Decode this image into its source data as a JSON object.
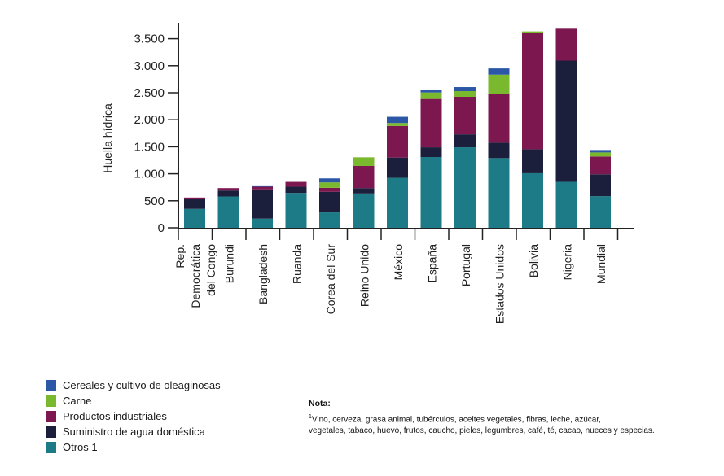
{
  "chart_data": {
    "type": "bar",
    "stacked": true,
    "title": "",
    "xlabel": "",
    "ylabel": "Huella hídrica",
    "ylim": [
      0,
      3600
    ],
    "yticks": [
      0,
      500,
      1000,
      1500,
      2000,
      2500,
      3000,
      3500
    ],
    "ytick_labels": [
      "0",
      "500",
      "1.000",
      "1.500",
      "2.000",
      "2.500",
      "3.000",
      "3.500"
    ],
    "grid": false,
    "legend_position": "bottom-left",
    "categories": [
      [
        "Rep.",
        "Democrática",
        "del Congo"
      ],
      [
        "Burundi"
      ],
      [
        "Bangladesh"
      ],
      [
        "Ruanda"
      ],
      [
        "Corea del Sur"
      ],
      [
        "Reino Unido"
      ],
      [
        "México"
      ],
      [
        "España"
      ],
      [
        "Portugal"
      ],
      [
        "Estados Unidos"
      ],
      [
        "Bolivia"
      ],
      [
        "Nigeria"
      ],
      [
        "Mundial"
      ]
    ],
    "series": [
      {
        "name": "Otros 1",
        "color": "#1c7b86",
        "values": [
          350,
          580,
          170,
          645,
          285,
          635,
          925,
          1310,
          1490,
          1290,
          1010,
          850,
          585
        ]
      },
      {
        "name": "Suministro de agua doméstica",
        "color": "#1c1f3c",
        "values": [
          180,
          110,
          540,
          115,
          380,
          100,
          375,
          180,
          240,
          285,
          445,
          2245,
          405
        ]
      },
      {
        "name": "Productos industriales",
        "color": "#7c1750",
        "values": [
          30,
          45,
          50,
          90,
          75,
          410,
          585,
          895,
          695,
          910,
          2145,
          590,
          330
        ]
      },
      {
        "name": "Carne",
        "color": "#7ab82e",
        "values": [
          0,
          0,
          0,
          0,
          100,
          160,
          55,
          120,
          105,
          350,
          35,
          0,
          75
        ]
      },
      {
        "name": "Cereales y cultivo de oleaginosas",
        "color": "#2c57a7",
        "values": [
          0,
          0,
          25,
          0,
          75,
          0,
          115,
          40,
          75,
          115,
          0,
          0,
          45
        ]
      }
    ]
  },
  "legend": {
    "items": [
      {
        "label": "Cereales y cultivo de oleaginosas",
        "color": "#2c57a7"
      },
      {
        "label": "Carne",
        "color": "#7ab82e"
      },
      {
        "label": "Productos industriales",
        "color": "#7c1750"
      },
      {
        "label": "Suministro de agua doméstica",
        "color": "#1c1f3c"
      },
      {
        "label": "Otros 1",
        "color": "#1c7b86"
      }
    ]
  },
  "note": {
    "title": "Nota:",
    "superscript": "1",
    "line1": "Vino, cerveza, grasa animal, tubérculos, aceites vegetales, fibras, leche, azúcar,",
    "line2": "vegetales, tabaco, huevo, frutos, caucho, pieles, legumbres, café, té, cacao, nueces y especias."
  }
}
